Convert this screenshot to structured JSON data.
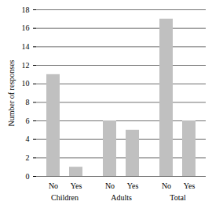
{
  "chart_data": {
    "type": "bar",
    "categories": [
      "No",
      "Yes",
      "No",
      "Yes",
      "No",
      "Yes"
    ],
    "group_labels": [
      "Children",
      "Children",
      "Adults",
      "Adults",
      "Total",
      "Total"
    ],
    "values": [
      11,
      1,
      6,
      5,
      17,
      6
    ],
    "color": "#c0c0c0",
    "y_label": "Number of responses",
    "ylim": [
      0,
      18
    ],
    "yticks": [
      0,
      2,
      4,
      6,
      8,
      10,
      12,
      14,
      16,
      18
    ],
    "grid": true
  }
}
